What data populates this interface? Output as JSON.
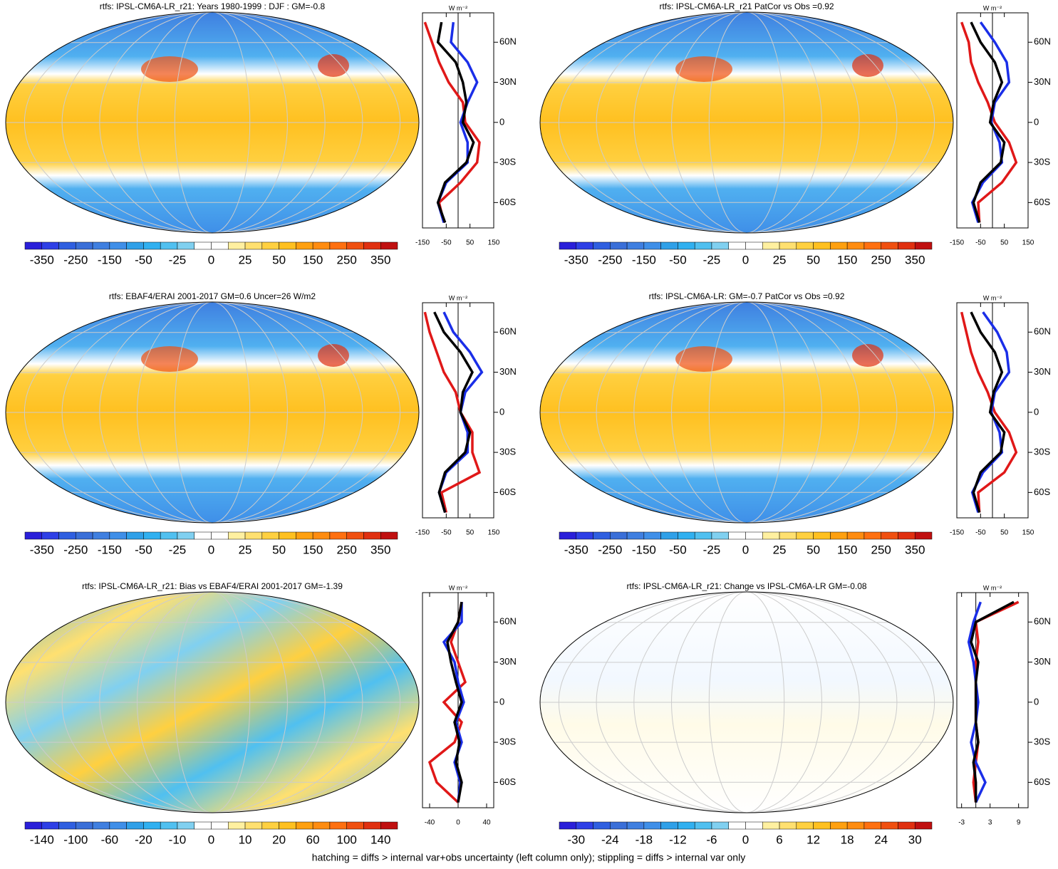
{
  "colorbar_colors": [
    "#2a1fd9",
    "#2e3fe6",
    "#2f5fe0",
    "#3a6fd8",
    "#3f7fe0",
    "#3f8fe8",
    "#2fa0e8",
    "#30b0f0",
    "#50c0f0",
    "#80d0f0",
    "#ffffff",
    "#ffffff",
    "#fff0a0",
    "#ffe070",
    "#ffd040",
    "#ffc020",
    "#ffa010",
    "#ff8c10",
    "#ff7010",
    "#f05010",
    "#e03010",
    "#c01010"
  ],
  "lat_ticks": [
    {
      "value": 60,
      "label": "60N"
    },
    {
      "value": 30,
      "label": "30N"
    },
    {
      "value": 0,
      "label": "0"
    },
    {
      "value": -30,
      "label": "30S"
    },
    {
      "value": -60,
      "label": "60S"
    }
  ],
  "profile_lats": [
    -75,
    -60,
    -45,
    -30,
    -15,
    0,
    15,
    30,
    45,
    60,
    75
  ],
  "profile_ylim": [
    -79,
    82
  ],
  "units": "W m⁻²",
  "series_colors": [
    "#e01818",
    "#1a2ee8",
    "#000000"
  ],
  "panels": [
    {
      "title": "rtfs: IPSL-CM6A-LR_r21: Years 1980-1999 : DJF : GM=-0.8",
      "map_style": "mean",
      "colorbar_labels": [
        -350,
        -250,
        -150,
        -50,
        -25,
        0,
        25,
        50,
        150,
        250,
        350
      ],
      "xlim": [
        -150,
        150
      ],
      "xticks": [
        -150,
        -50,
        50,
        150
      ],
      "series": [
        [
          -60,
          -80,
          10,
          80,
          90,
          30,
          20,
          -40,
          -80,
          -110,
          -140
        ],
        [
          -60,
          -85,
          -50,
          40,
          40,
          10,
          40,
          80,
          40,
          -30,
          -20
        ],
        [
          -55,
          -85,
          -55,
          35,
          65,
          20,
          35,
          20,
          -10,
          -85,
          -70
        ]
      ]
    },
    {
      "title": "rtfs: IPSL-CM6A-LR_r21 PatCor vs Obs =0.92",
      "map_style": "mean",
      "colorbar_labels": [
        -350,
        -250,
        -150,
        -50,
        -25,
        0,
        25,
        50,
        150,
        250,
        350
      ],
      "xlim": [
        -150,
        150
      ],
      "xticks": [
        -150,
        -50,
        50,
        150
      ],
      "series": [
        [
          -55,
          -60,
          40,
          100,
          70,
          10,
          -20,
          -60,
          -90,
          -100,
          -130
        ],
        [
          -60,
          -85,
          -40,
          40,
          30,
          -5,
          10,
          70,
          60,
          10,
          -50
        ],
        [
          -55,
          -80,
          -50,
          35,
          50,
          -10,
          5,
          40,
          10,
          -50,
          -90
        ]
      ]
    },
    {
      "title": "rtfs: EBAF4/ERAI 2001-2017 GM=0.6 Uncer=26 W/m2",
      "map_style": "mean",
      "colorbar_labels": [
        -350,
        -250,
        -150,
        -50,
        -25,
        0,
        25,
        50,
        150,
        250,
        350
      ],
      "xlim": [
        -150,
        150
      ],
      "xticks": [
        -150,
        -50,
        50,
        150
      ],
      "series": [
        [
          -50,
          -70,
          90,
          60,
          60,
          10,
          -10,
          -60,
          -90,
          -120,
          -140
        ],
        [
          -55,
          -80,
          -50,
          40,
          40,
          10,
          30,
          100,
          50,
          -20,
          -60
        ],
        [
          -55,
          -80,
          -55,
          30,
          50,
          10,
          20,
          60,
          10,
          -60,
          -100
        ]
      ]
    },
    {
      "title": "rtfs: IPSL-CM6A-LR: GM=-0.7 PatCor vs Obs =0.92",
      "map_style": "mean",
      "colorbar_labels": [
        -350,
        -250,
        -150,
        -50,
        -25,
        0,
        25,
        50,
        150,
        250,
        350
      ],
      "xlim": [
        -150,
        150
      ],
      "xticks": [
        -150,
        -50,
        50,
        150
      ],
      "series": [
        [
          -55,
          -60,
          50,
          100,
          70,
          10,
          -20,
          -60,
          -90,
          -110,
          -130
        ],
        [
          -60,
          -85,
          -40,
          40,
          30,
          -5,
          10,
          70,
          60,
          20,
          -40
        ],
        [
          -55,
          -80,
          -50,
          35,
          50,
          -10,
          5,
          40,
          10,
          -50,
          -90
        ]
      ]
    },
    {
      "title": "rtfs: IPSL-CM6A-LR_r21: Bias vs EBAF4/ERAI 2001-2017 GM=-1.39",
      "map_style": "bias",
      "colorbar_labels": [
        -140,
        -100,
        -60,
        -20,
        -10,
        0,
        10,
        20,
        60,
        100,
        140
      ],
      "xlim": [
        -50,
        50
      ],
      "xticks": [
        -40,
        0,
        40
      ],
      "series": [
        [
          0,
          -30,
          -40,
          -5,
          5,
          -20,
          10,
          0,
          -10,
          0,
          5
        ],
        [
          0,
          3,
          -5,
          5,
          -3,
          8,
          0,
          -5,
          -20,
          5,
          5
        ],
        [
          0,
          5,
          -3,
          2,
          -5,
          5,
          -3,
          -10,
          -15,
          0,
          5
        ]
      ]
    },
    {
      "title": "rtfs: IPSL-CM6A-LR_r21: Change vs IPSL-CM6A-LR GM=-0.08",
      "map_style": "change",
      "colorbar_labels": [
        -30,
        -24,
        -18,
        -12,
        -6,
        0,
        6,
        12,
        18,
        24,
        30
      ],
      "xlim": [
        -4,
        11
      ],
      "xticks": [
        -3,
        3,
        9
      ],
      "series": [
        [
          0,
          -0.5,
          0,
          0.5,
          0,
          0,
          0,
          0,
          0.5,
          0,
          9
        ],
        [
          0,
          2,
          0,
          -1,
          0,
          0.5,
          0,
          -0.5,
          -1.5,
          -0.5,
          1
        ],
        [
          0,
          0,
          -0.5,
          0.5,
          0,
          0,
          0,
          0.5,
          -1,
          0,
          8
        ]
      ]
    }
  ],
  "footer": "hatching = diffs > internal var+obs uncertainty (left column only); stippling = diffs > internal var only"
}
